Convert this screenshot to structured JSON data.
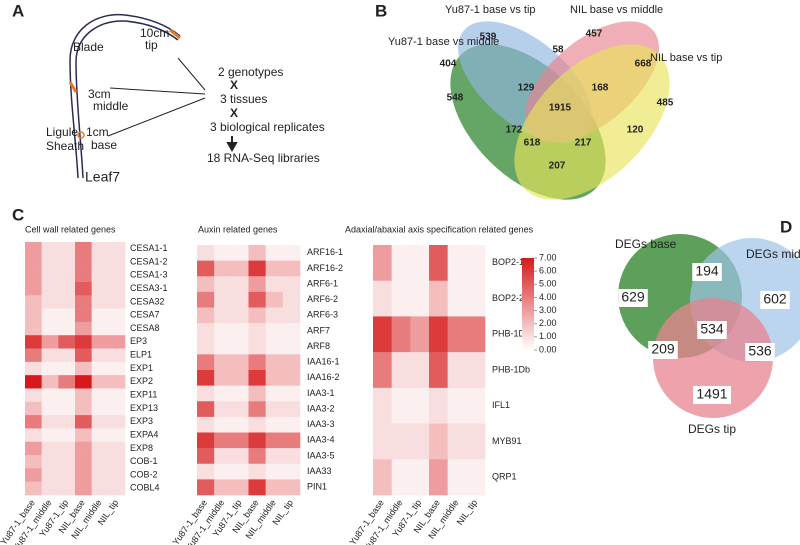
{
  "panels": {
    "a": {
      "label": "A",
      "tip_length": "10cm",
      "tip": "tip",
      "blade": "Blade",
      "middle_length": "3cm",
      "middle": "middle",
      "ligule": "Ligule",
      "sheath": "Sheath",
      "base_length": "1cm",
      "base": "base",
      "leaf": "Leaf7",
      "design": [
        "2 genotypes",
        "X",
        "3 tissues",
        "X",
        "3 biological replicates",
        "18 RNA-Seq libraries"
      ]
    },
    "b": {
      "label": "B",
      "sets": [
        "Yu87-1 base vs tip",
        "NIL base vs middle",
        "Yu87-1 base vs middle",
        "NIL base vs tip"
      ],
      "counts": [
        539,
        58,
        457,
        404,
        668,
        548,
        129,
        168,
        485,
        1915,
        172,
        120,
        618,
        217,
        207
      ]
    },
    "c": {
      "label": "C",
      "columns": [
        "Yu87-1_base",
        "Yu87-1_middle",
        "Yu87-1_tip",
        "NIL_base",
        "NIL_middle",
        "NIL_tip"
      ],
      "scale": {
        "ticks": [
          {
            "value": 7,
            "label": "7.00"
          },
          {
            "value": 6,
            "label": "6.00"
          },
          {
            "value": 5,
            "label": "5.00"
          },
          {
            "value": 4,
            "label": "4.00"
          },
          {
            "value": 3,
            "label": "3.00"
          },
          {
            "value": 2,
            "label": "2.00"
          },
          {
            "value": 1,
            "label": "1.00"
          },
          {
            "value": 0,
            "label": "0.00"
          }
        ],
        "color": "#d7191c"
      },
      "heatmaps": [
        {
          "title": "Cell wall related genes",
          "rows": [
            "CESA1-1",
            "CESA1-2",
            "CESA1-3",
            "CESA3-1",
            "CESA32",
            "CESA7",
            "CESA8",
            "EP3",
            "ELP1",
            "EXP1",
            "EXP2",
            "EXP11",
            "EXP13",
            "EXP3",
            "EXPA4",
            "EXP8",
            "COB-1",
            "COB-2",
            "COBL4"
          ],
          "values": [
            [
              3,
              1,
              1,
              4,
              1,
              1
            ],
            [
              3,
              1,
              1,
              4,
              1,
              1
            ],
            [
              3,
              1,
              1,
              4,
              1,
              1
            ],
            [
              3,
              1,
              1,
              5,
              1,
              1
            ],
            [
              2,
              1,
              1,
              4,
              1,
              1
            ],
            [
              2,
              0.5,
              0.5,
              4,
              0.5,
              0.5
            ],
            [
              2,
              0.5,
              0.5,
              3,
              0.5,
              0.5
            ],
            [
              6,
              3,
              5,
              6,
              3,
              3
            ],
            [
              4,
              1,
              1,
              5,
              1,
              1
            ],
            [
              1,
              0.5,
              0.5,
              2,
              0.5,
              0.5
            ],
            [
              7,
              2,
              4,
              7,
              2,
              2
            ],
            [
              1,
              0.5,
              0.5,
              2,
              0.5,
              0.5
            ],
            [
              2,
              0.5,
              0.5,
              2,
              0.5,
              0.5
            ],
            [
              4,
              1,
              1,
              5,
              1,
              1
            ],
            [
              1,
              0.5,
              0.5,
              2,
              0.5,
              0.5
            ],
            [
              3,
              1,
              1,
              3,
              1,
              1
            ],
            [
              2,
              1,
              1,
              3,
              1,
              1
            ],
            [
              3,
              1,
              1,
              3,
              1,
              1
            ],
            [
              2,
              1,
              1,
              3,
              1,
              1
            ]
          ]
        },
        {
          "title": "Auxin related genes",
          "rows": [
            "ARF16-1",
            "ARF16-2",
            "ARF6-1",
            "ARF6-2",
            "ARF6-3",
            "ARF7",
            "ARF8",
            "IAA16-1",
            "IAA16-2",
            "IAA3-1",
            "IAA3-2",
            "IAA3-3",
            "IAA3-4",
            "IAA3-5",
            "IAA33",
            "PIN1"
          ],
          "values": [
            [
              1,
              0.5,
              0.5,
              2,
              0.5,
              0.5
            ],
            [
              5,
              2,
              2,
              6,
              2,
              2
            ],
            [
              2,
              1,
              1,
              3,
              1,
              1
            ],
            [
              4,
              1,
              1,
              5,
              2,
              1
            ],
            [
              2,
              1,
              1,
              2,
              1,
              1
            ],
            [
              1,
              0.5,
              0.5,
              1,
              0.5,
              0.5
            ],
            [
              1,
              0.5,
              0.5,
              1,
              0.5,
              0.5
            ],
            [
              4,
              2,
              2,
              4,
              2,
              2
            ],
            [
              6,
              2,
              2,
              6,
              2,
              2
            ],
            [
              1,
              0.5,
              0.5,
              2,
              0.5,
              0.5
            ],
            [
              5,
              1,
              1,
              4,
              1,
              1
            ],
            [
              1,
              0.5,
              0.5,
              1,
              0.5,
              0.5
            ],
            [
              6,
              4,
              4,
              6,
              4,
              4
            ],
            [
              5,
              1,
              1,
              4,
              1,
              1
            ],
            [
              1,
              0.5,
              0.5,
              1,
              0.5,
              0.5
            ],
            [
              5,
              2,
              2,
              6,
              2,
              2
            ]
          ]
        },
        {
          "title": "Adaxial/abaxial axis specification related genes",
          "rows": [
            "BOP2-1",
            "BOP2-2",
            "PHB-1Da",
            "PHB-1Db",
            "IFL1",
            "MYB91",
            "QRP1"
          ],
          "values": [
            [
              3,
              0.5,
              0.5,
              5,
              0.5,
              0.5
            ],
            [
              1,
              0.5,
              0.5,
              2,
              0.5,
              0.5
            ],
            [
              6,
              4,
              3,
              6,
              4,
              4
            ],
            [
              4,
              1,
              1,
              5,
              1,
              1
            ],
            [
              1,
              0.5,
              0.5,
              1,
              0.5,
              0.5
            ],
            [
              1,
              1,
              1,
              2,
              1,
              1
            ],
            [
              2,
              0.5,
              0.5,
              3,
              0.5,
              0.5
            ]
          ]
        }
      ]
    },
    "d": {
      "label": "D",
      "sets": [
        "DEGs base",
        "DEGs mid",
        "DEGs tip"
      ],
      "counts": [
        629,
        194,
        602,
        534,
        209,
        536,
        1491
      ]
    }
  }
}
